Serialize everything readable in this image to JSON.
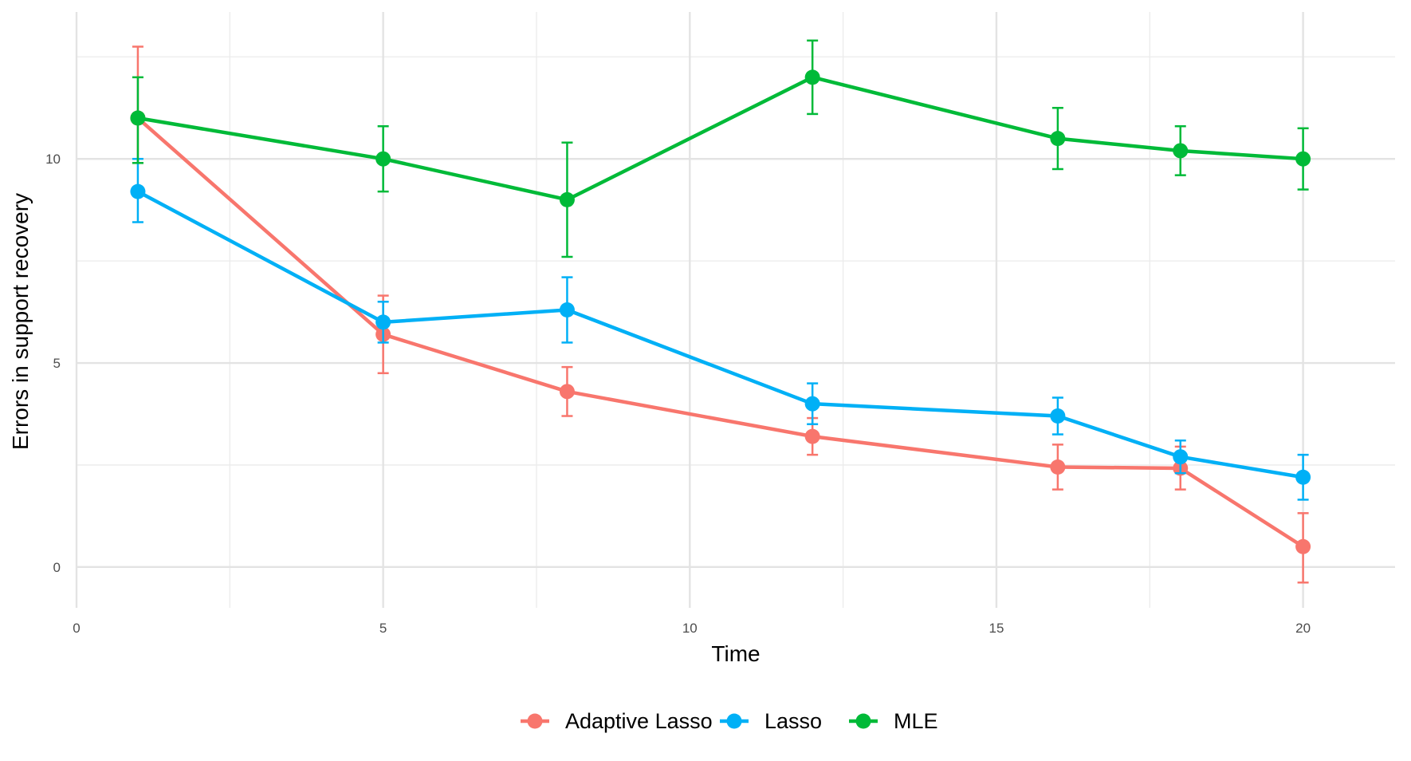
{
  "chart_data": {
    "type": "line",
    "title": "",
    "xlabel": "Time",
    "ylabel": "Errors in support recovery",
    "xlim": [
      0,
      21.5
    ],
    "ylim": [
      -1.0,
      13.6
    ],
    "x_ticks": [
      0,
      5,
      10,
      15,
      20
    ],
    "x_tick_labels": [
      "0",
      "5",
      "10",
      "15",
      "20"
    ],
    "x_minor_ticks": [
      2.5,
      7.5,
      12.5,
      17.5
    ],
    "y_ticks": [
      0,
      5,
      10
    ],
    "y_tick_labels": [
      "0",
      "5",
      "10"
    ],
    "y_minor_ticks": [
      2.5,
      7.5,
      12.5
    ],
    "grid": true,
    "legend_position": "bottom",
    "series": [
      {
        "name": "Adaptive Lasso",
        "color": "#F8766D",
        "x": [
          1,
          5,
          8,
          12,
          16,
          18,
          20
        ],
        "y": [
          11.0,
          5.7,
          4.3,
          3.2,
          2.45,
          2.42,
          0.5
        ],
        "err_low": [
          9.9,
          4.75,
          3.7,
          2.75,
          1.9,
          1.9,
          -0.38
        ],
        "err_high": [
          12.75,
          6.65,
          4.9,
          3.65,
          3.0,
          2.95,
          1.32
        ]
      },
      {
        "name": "Lasso",
        "color": "#00B0F6",
        "x": [
          1,
          5,
          8,
          12,
          16,
          18,
          20
        ],
        "y": [
          9.2,
          6.0,
          6.3,
          4.0,
          3.7,
          2.7,
          2.2
        ],
        "err_low": [
          8.45,
          5.5,
          5.5,
          3.5,
          3.25,
          2.3,
          1.65
        ],
        "err_high": [
          10.0,
          6.5,
          7.1,
          4.5,
          4.15,
          3.1,
          2.75
        ]
      },
      {
        "name": "MLE",
        "color": "#00BA38",
        "x": [
          1,
          5,
          8,
          12,
          16,
          18,
          20
        ],
        "y": [
          11.0,
          10.0,
          9.0,
          12.0,
          10.5,
          10.2,
          10.0
        ],
        "err_low": [
          9.9,
          9.2,
          7.6,
          11.1,
          9.75,
          9.6,
          9.25
        ],
        "err_high": [
          12.0,
          10.8,
          10.4,
          12.9,
          11.25,
          10.8,
          10.75
        ]
      }
    ]
  }
}
